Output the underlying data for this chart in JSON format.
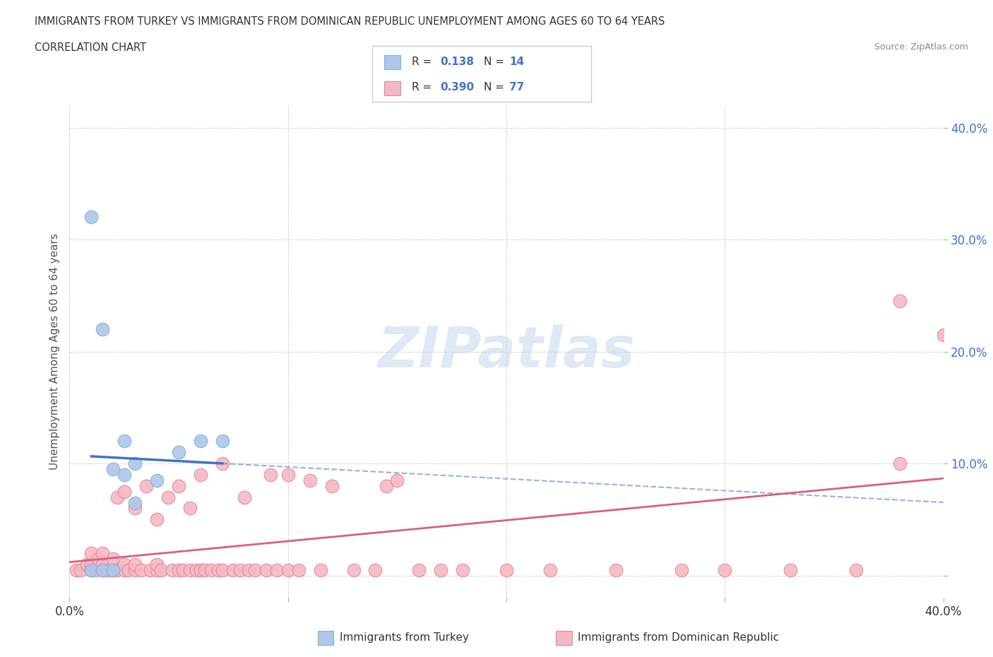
{
  "title_line1": "IMMIGRANTS FROM TURKEY VS IMMIGRANTS FROM DOMINICAN REPUBLIC UNEMPLOYMENT AMONG AGES 60 TO 64 YEARS",
  "title_line2": "CORRELATION CHART",
  "source": "Source: ZipAtlas.com",
  "ylabel": "Unemployment Among Ages 60 to 64 years",
  "xlim": [
    0.0,
    0.4
  ],
  "ylim": [
    -0.02,
    0.42
  ],
  "watermark": "ZIPatlas",
  "turkey_color": "#aec6e8",
  "turkey_edge_color": "#7ab4d8",
  "dominican_color": "#f4b8c4",
  "dominican_edge_color": "#e8849a",
  "turkey_R": 0.138,
  "turkey_N": 14,
  "dominican_R": 0.39,
  "dominican_N": 77,
  "legend_label_turkey": "Immigrants from Turkey",
  "legend_label_dominican": "Immigrants from Dominican Republic",
  "turkey_line_color": "#4472c4",
  "dominican_line_color": "#d9607a",
  "background_color": "#ffffff",
  "grid_color": "#cccccc",
  "title_color": "#333333",
  "axis_label_color": "#555555",
  "tick_color_right": "#4472c4",
  "tick_color_bottom": "#333333",
  "turkey_scatter_x": [
    0.01,
    0.01,
    0.015,
    0.015,
    0.02,
    0.02,
    0.025,
    0.025,
    0.03,
    0.03,
    0.04,
    0.05,
    0.06,
    0.07
  ],
  "turkey_scatter_y": [
    0.32,
    0.005,
    0.22,
    0.005,
    0.095,
    0.005,
    0.09,
    0.12,
    0.1,
    0.065,
    0.085,
    0.11,
    0.12,
    0.12
  ],
  "dominican_scatter_x": [
    0.003,
    0.005,
    0.008,
    0.01,
    0.01,
    0.01,
    0.012,
    0.013,
    0.015,
    0.015,
    0.015,
    0.017,
    0.018,
    0.02,
    0.02,
    0.022,
    0.022,
    0.025,
    0.025,
    0.025,
    0.027,
    0.03,
    0.03,
    0.03,
    0.033,
    0.035,
    0.037,
    0.04,
    0.04,
    0.04,
    0.042,
    0.045,
    0.047,
    0.05,
    0.05,
    0.052,
    0.055,
    0.055,
    0.058,
    0.06,
    0.06,
    0.062,
    0.065,
    0.068,
    0.07,
    0.07,
    0.075,
    0.078,
    0.08,
    0.082,
    0.085,
    0.09,
    0.092,
    0.095,
    0.1,
    0.1,
    0.105,
    0.11,
    0.115,
    0.12,
    0.13,
    0.14,
    0.145,
    0.15,
    0.16,
    0.17,
    0.18,
    0.2,
    0.22,
    0.25,
    0.28,
    0.3,
    0.33,
    0.36,
    0.38,
    0.38,
    0.4
  ],
  "dominican_scatter_y": [
    0.005,
    0.005,
    0.01,
    0.005,
    0.01,
    0.02,
    0.005,
    0.015,
    0.005,
    0.01,
    0.02,
    0.005,
    0.005,
    0.005,
    0.015,
    0.005,
    0.07,
    0.005,
    0.01,
    0.075,
    0.005,
    0.005,
    0.01,
    0.06,
    0.005,
    0.08,
    0.005,
    0.005,
    0.01,
    0.05,
    0.005,
    0.07,
    0.005,
    0.005,
    0.08,
    0.005,
    0.005,
    0.06,
    0.005,
    0.005,
    0.09,
    0.005,
    0.005,
    0.005,
    0.005,
    0.1,
    0.005,
    0.005,
    0.07,
    0.005,
    0.005,
    0.005,
    0.09,
    0.005,
    0.005,
    0.09,
    0.005,
    0.085,
    0.005,
    0.08,
    0.005,
    0.005,
    0.08,
    0.085,
    0.005,
    0.005,
    0.005,
    0.005,
    0.005,
    0.005,
    0.005,
    0.005,
    0.005,
    0.005,
    0.1,
    0.245,
    0.215
  ]
}
